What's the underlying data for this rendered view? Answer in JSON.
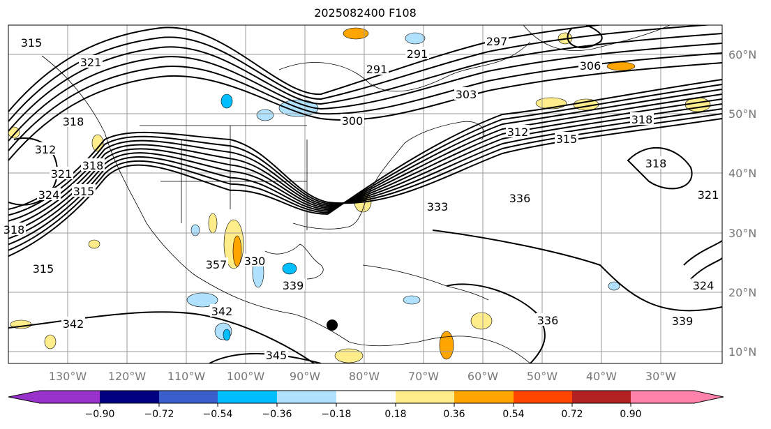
{
  "title": "2025082400 F108",
  "lon_labels": [
    "130°W",
    "120°W",
    "110°W",
    "100°W",
    "90°W",
    "80°W",
    "70°W",
    "60°W",
    "50°W",
    "40°W",
    "30°W"
  ],
  "lat_labels": [
    "60°N",
    "50°N",
    "40°N",
    "30°N",
    "20°N",
    "10°N"
  ],
  "contour_labels": [
    "315",
    "321",
    "291",
    "297",
    "306",
    "303",
    "300",
    "312",
    "315",
    "318",
    "312",
    "318",
    "321",
    "324",
    "315",
    "318",
    "315",
    "342",
    "342",
    "339",
    "357",
    "336",
    "333",
    "336",
    "339",
    "345",
    "318",
    "321",
    "324",
    "330",
    "318",
    "291"
  ],
  "colorbar": {
    "ticks": [
      "−0.90",
      "−0.72",
      "−0.54",
      "−0.36",
      "−0.18",
      "0.18",
      "0.36",
      "0.54",
      "0.72",
      "0.90"
    ],
    "colors": [
      "#9932cc",
      "#000080",
      "#3a5fcd",
      "#00bfff",
      "#b0e2ff",
      "#ffffff",
      "#ffec8b",
      "#ffa500",
      "#ff4500",
      "#b22222",
      "#ff82ab"
    ]
  },
  "marker": {
    "label": "storm-center"
  }
}
